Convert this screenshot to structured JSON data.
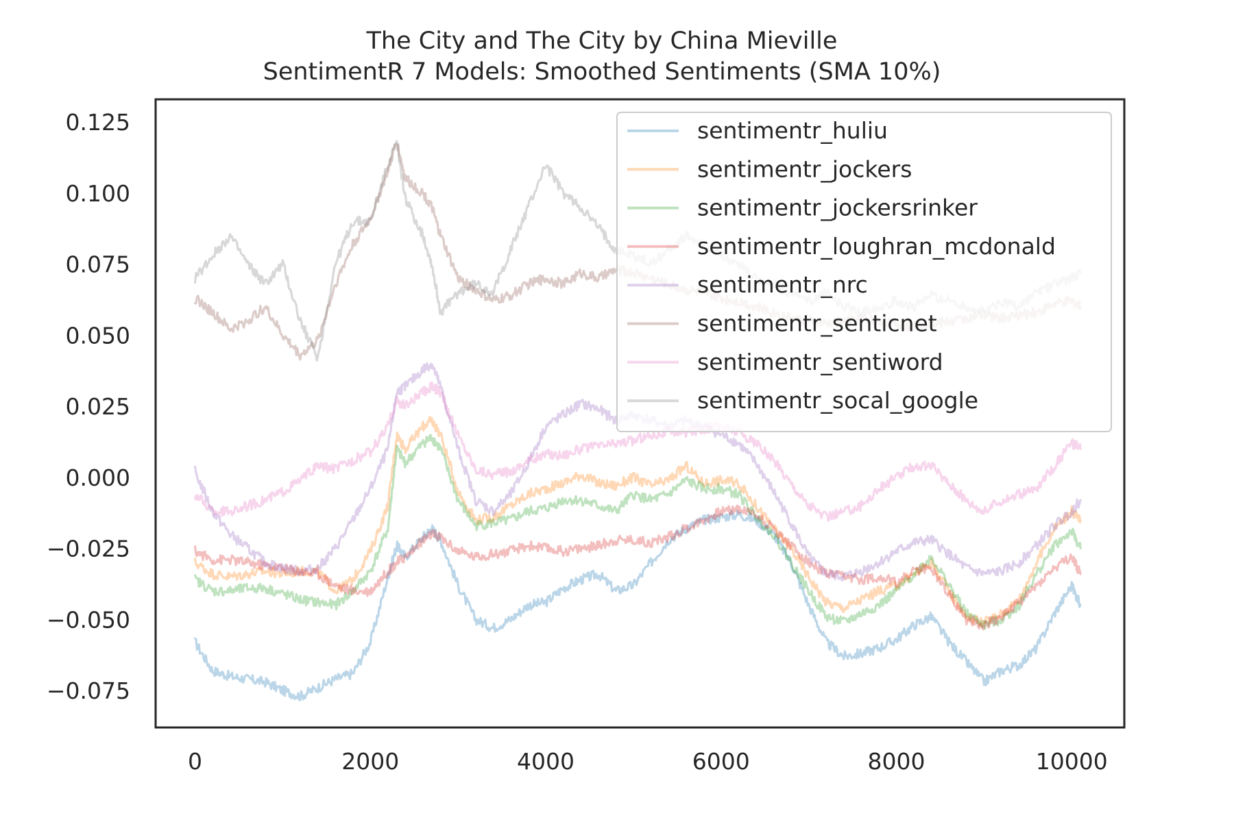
{
  "chart_data": {
    "type": "line",
    "title": "The City and The City by China Mieville",
    "subtitle": "SentimentR 7 Models: Smoothed Sentiments (SMA 10%)",
    "xlabel": "",
    "ylabel": "",
    "xlim": [
      -450,
      10600
    ],
    "ylim": [
      -0.088,
      0.133
    ],
    "xticks": [
      0,
      2000,
      4000,
      6000,
      8000,
      10000
    ],
    "xtick_labels": [
      "0",
      "2000",
      "4000",
      "6000",
      "8000",
      "10000"
    ],
    "yticks": [
      -0.075,
      -0.05,
      -0.025,
      0.0,
      0.025,
      0.05,
      0.075,
      0.1,
      0.125
    ],
    "ytick_labels": [
      "−0.075",
      "−0.050",
      "−0.025",
      "0.000",
      "0.025",
      "0.050",
      "0.075",
      "0.100",
      "0.125"
    ],
    "grid": false,
    "legend_position": "upper right",
    "x": [
      0,
      200,
      400,
      600,
      800,
      1000,
      1200,
      1400,
      1600,
      1800,
      2000,
      2200,
      2300,
      2400,
      2600,
      2700,
      2800,
      3000,
      3200,
      3400,
      3600,
      3800,
      4000,
      4200,
      4400,
      4600,
      4800,
      5000,
      5200,
      5400,
      5600,
      5800,
      6000,
      6200,
      6400,
      6600,
      6800,
      7000,
      7200,
      7400,
      7600,
      7800,
      8000,
      8200,
      8400,
      8600,
      8800,
      9000,
      9200,
      9400,
      9600,
      9800,
      10000,
      10100
    ],
    "series": [
      {
        "name": "sentimentr_huliu",
        "color": "#1f77b4",
        "values": [
          -0.058,
          -0.068,
          -0.07,
          -0.071,
          -0.072,
          -0.075,
          -0.077,
          -0.074,
          -0.071,
          -0.069,
          -0.058,
          -0.035,
          -0.024,
          -0.028,
          -0.021,
          -0.018,
          -0.022,
          -0.038,
          -0.05,
          -0.053,
          -0.05,
          -0.045,
          -0.044,
          -0.039,
          -0.036,
          -0.034,
          -0.04,
          -0.038,
          -0.03,
          -0.022,
          -0.018,
          -0.015,
          -0.014,
          -0.013,
          -0.015,
          -0.02,
          -0.03,
          -0.045,
          -0.058,
          -0.063,
          -0.062,
          -0.06,
          -0.057,
          -0.052,
          -0.049,
          -0.058,
          -0.065,
          -0.072,
          -0.068,
          -0.066,
          -0.06,
          -0.048,
          -0.038,
          -0.045
        ]
      },
      {
        "name": "sentimentr_jockers",
        "color": "#ff7f0e",
        "values": [
          -0.03,
          -0.034,
          -0.035,
          -0.034,
          -0.033,
          -0.034,
          -0.033,
          -0.033,
          -0.04,
          -0.036,
          -0.026,
          -0.01,
          0.015,
          0.01,
          0.018,
          0.02,
          0.015,
          -0.005,
          -0.015,
          -0.014,
          -0.01,
          -0.006,
          -0.004,
          -0.002,
          0.001,
          -0.002,
          -0.003,
          0.0,
          -0.003,
          -0.001,
          0.004,
          -0.002,
          -0.001,
          -0.002,
          -0.01,
          -0.018,
          -0.025,
          -0.035,
          -0.044,
          -0.046,
          -0.043,
          -0.04,
          -0.038,
          -0.034,
          -0.03,
          -0.04,
          -0.049,
          -0.051,
          -0.048,
          -0.043,
          -0.03,
          -0.018,
          -0.012,
          -0.015
        ]
      },
      {
        "name": "sentimentr_jockersrinker",
        "color": "#2ca02c",
        "values": [
          -0.036,
          -0.04,
          -0.04,
          -0.039,
          -0.039,
          -0.041,
          -0.043,
          -0.044,
          -0.045,
          -0.04,
          -0.033,
          -0.018,
          0.01,
          0.005,
          0.012,
          0.014,
          0.01,
          -0.008,
          -0.017,
          -0.016,
          -0.015,
          -0.012,
          -0.011,
          -0.008,
          -0.008,
          -0.01,
          -0.012,
          -0.006,
          -0.008,
          -0.006,
          -0.001,
          -0.004,
          -0.004,
          -0.006,
          -0.014,
          -0.02,
          -0.03,
          -0.04,
          -0.049,
          -0.051,
          -0.048,
          -0.045,
          -0.04,
          -0.034,
          -0.028,
          -0.038,
          -0.048,
          -0.052,
          -0.05,
          -0.045,
          -0.034,
          -0.024,
          -0.019,
          -0.025
        ]
      },
      {
        "name": "sentimentr_loughran_mcdonald",
        "color": "#d62728",
        "values": [
          -0.026,
          -0.029,
          -0.029,
          -0.03,
          -0.031,
          -0.032,
          -0.033,
          -0.034,
          -0.038,
          -0.04,
          -0.04,
          -0.033,
          -0.03,
          -0.028,
          -0.022,
          -0.02,
          -0.021,
          -0.026,
          -0.028,
          -0.027,
          -0.026,
          -0.024,
          -0.025,
          -0.026,
          -0.025,
          -0.024,
          -0.022,
          -0.022,
          -0.023,
          -0.021,
          -0.018,
          -0.015,
          -0.012,
          -0.011,
          -0.013,
          -0.018,
          -0.024,
          -0.03,
          -0.034,
          -0.035,
          -0.036,
          -0.035,
          -0.037,
          -0.033,
          -0.032,
          -0.041,
          -0.05,
          -0.052,
          -0.049,
          -0.044,
          -0.038,
          -0.032,
          -0.028,
          -0.034
        ]
      },
      {
        "name": "sentimentr_nrc",
        "color": "#9467bd",
        "values": [
          0.002,
          -0.012,
          -0.02,
          -0.025,
          -0.03,
          -0.032,
          -0.033,
          -0.032,
          -0.025,
          -0.015,
          -0.004,
          0.01,
          0.03,
          0.032,
          0.038,
          0.04,
          0.032,
          0.01,
          -0.008,
          -0.012,
          -0.006,
          0.005,
          0.018,
          0.022,
          0.026,
          0.024,
          0.02,
          0.022,
          0.02,
          0.018,
          0.02,
          0.018,
          0.015,
          0.012,
          0.005,
          -0.005,
          -0.016,
          -0.028,
          -0.034,
          -0.035,
          -0.033,
          -0.03,
          -0.026,
          -0.023,
          -0.022,
          -0.027,
          -0.032,
          -0.034,
          -0.033,
          -0.03,
          -0.024,
          -0.017,
          -0.012,
          -0.008
        ]
      },
      {
        "name": "sentimentr_senticnet",
        "color": "#8c564b",
        "values": [
          0.063,
          0.058,
          0.052,
          0.055,
          0.06,
          0.05,
          0.043,
          0.048,
          0.068,
          0.082,
          0.091,
          0.108,
          0.118,
          0.105,
          0.1,
          0.095,
          0.085,
          0.07,
          0.066,
          0.062,
          0.064,
          0.068,
          0.07,
          0.068,
          0.072,
          0.07,
          0.073,
          0.072,
          0.07,
          0.068,
          0.066,
          0.065,
          0.063,
          0.062,
          0.06,
          0.058,
          0.056,
          0.055,
          0.054,
          0.055,
          0.056,
          0.055,
          0.054,
          0.053,
          0.054,
          0.055,
          0.056,
          0.057,
          0.056,
          0.057,
          0.058,
          0.061,
          0.062,
          0.06
        ]
      },
      {
        "name": "sentimentr_sentiword",
        "color": "#e377c2",
        "values": [
          -0.006,
          -0.012,
          -0.012,
          -0.01,
          -0.008,
          -0.005,
          -0.001,
          0.004,
          0.003,
          0.006,
          0.009,
          0.018,
          0.027,
          0.025,
          0.03,
          0.032,
          0.03,
          0.015,
          0.003,
          0.001,
          0.002,
          0.006,
          0.008,
          0.008,
          0.01,
          0.011,
          0.012,
          0.013,
          0.015,
          0.016,
          0.016,
          0.017,
          0.018,
          0.016,
          0.012,
          0.006,
          -0.002,
          -0.01,
          -0.014,
          -0.012,
          -0.01,
          -0.004,
          0.0,
          0.004,
          0.004,
          -0.002,
          -0.008,
          -0.012,
          -0.008,
          -0.006,
          -0.004,
          0.004,
          0.012,
          0.01
        ]
      },
      {
        "name": "sentimentr_socal_google",
        "color": "#7f7f7f",
        "values": [
          0.07,
          0.078,
          0.085,
          0.075,
          0.068,
          0.075,
          0.055,
          0.042,
          0.075,
          0.09,
          0.09,
          0.11,
          0.118,
          0.098,
          0.085,
          0.075,
          0.058,
          0.065,
          0.068,
          0.065,
          0.08,
          0.095,
          0.11,
          0.1,
          0.095,
          0.088,
          0.08,
          0.078,
          0.075,
          0.08,
          0.085,
          0.082,
          0.078,
          0.075,
          0.07,
          0.068,
          0.065,
          0.062,
          0.065,
          0.06,
          0.058,
          0.06,
          0.062,
          0.06,
          0.064,
          0.062,
          0.06,
          0.058,
          0.062,
          0.06,
          0.065,
          0.068,
          0.07,
          0.072
        ]
      }
    ]
  }
}
